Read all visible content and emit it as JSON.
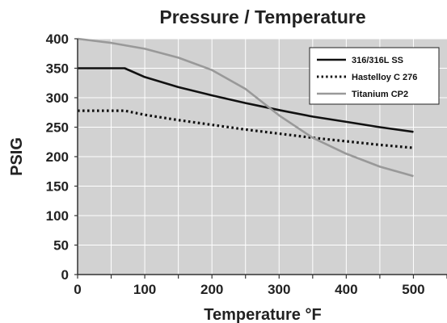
{
  "chart_data": {
    "type": "line",
    "title": "Pressure / Temperature",
    "xlabel": "Temperature °F",
    "ylabel": "PSIG",
    "xlim": [
      0,
      550
    ],
    "ylim": [
      0,
      400
    ],
    "x_ticks": [
      0,
      100,
      200,
      300,
      400,
      500
    ],
    "y_ticks": [
      0,
      50,
      100,
      150,
      200,
      250,
      300,
      350,
      400
    ],
    "grid": true,
    "legend_position": "top-right",
    "background_color": "#d2d2d2",
    "series": [
      {
        "name": "316/316L SS",
        "color": "#111111",
        "style": "solid",
        "points": [
          [
            0,
            350
          ],
          [
            70,
            350
          ],
          [
            100,
            335
          ],
          [
            150,
            318
          ],
          [
            200,
            304
          ],
          [
            250,
            291
          ],
          [
            300,
            279
          ],
          [
            350,
            268
          ],
          [
            400,
            259
          ],
          [
            450,
            250
          ],
          [
            500,
            242
          ]
        ]
      },
      {
        "name": "Hastelloy C 276",
        "color": "#111111",
        "style": "dotted",
        "points": [
          [
            0,
            278
          ],
          [
            70,
            278
          ],
          [
            100,
            271
          ],
          [
            150,
            262
          ],
          [
            200,
            254
          ],
          [
            250,
            246
          ],
          [
            300,
            239
          ],
          [
            350,
            232
          ],
          [
            400,
            226
          ],
          [
            450,
            220
          ],
          [
            500,
            215
          ]
        ]
      },
      {
        "name": "Titanium CP2",
        "color": "#999999",
        "style": "solid",
        "points": [
          [
            0,
            400
          ],
          [
            50,
            393
          ],
          [
            100,
            383
          ],
          [
            150,
            368
          ],
          [
            200,
            347
          ],
          [
            250,
            315
          ],
          [
            300,
            270
          ],
          [
            350,
            232
          ],
          [
            400,
            205
          ],
          [
            450,
            183
          ],
          [
            500,
            167
          ]
        ]
      }
    ]
  }
}
